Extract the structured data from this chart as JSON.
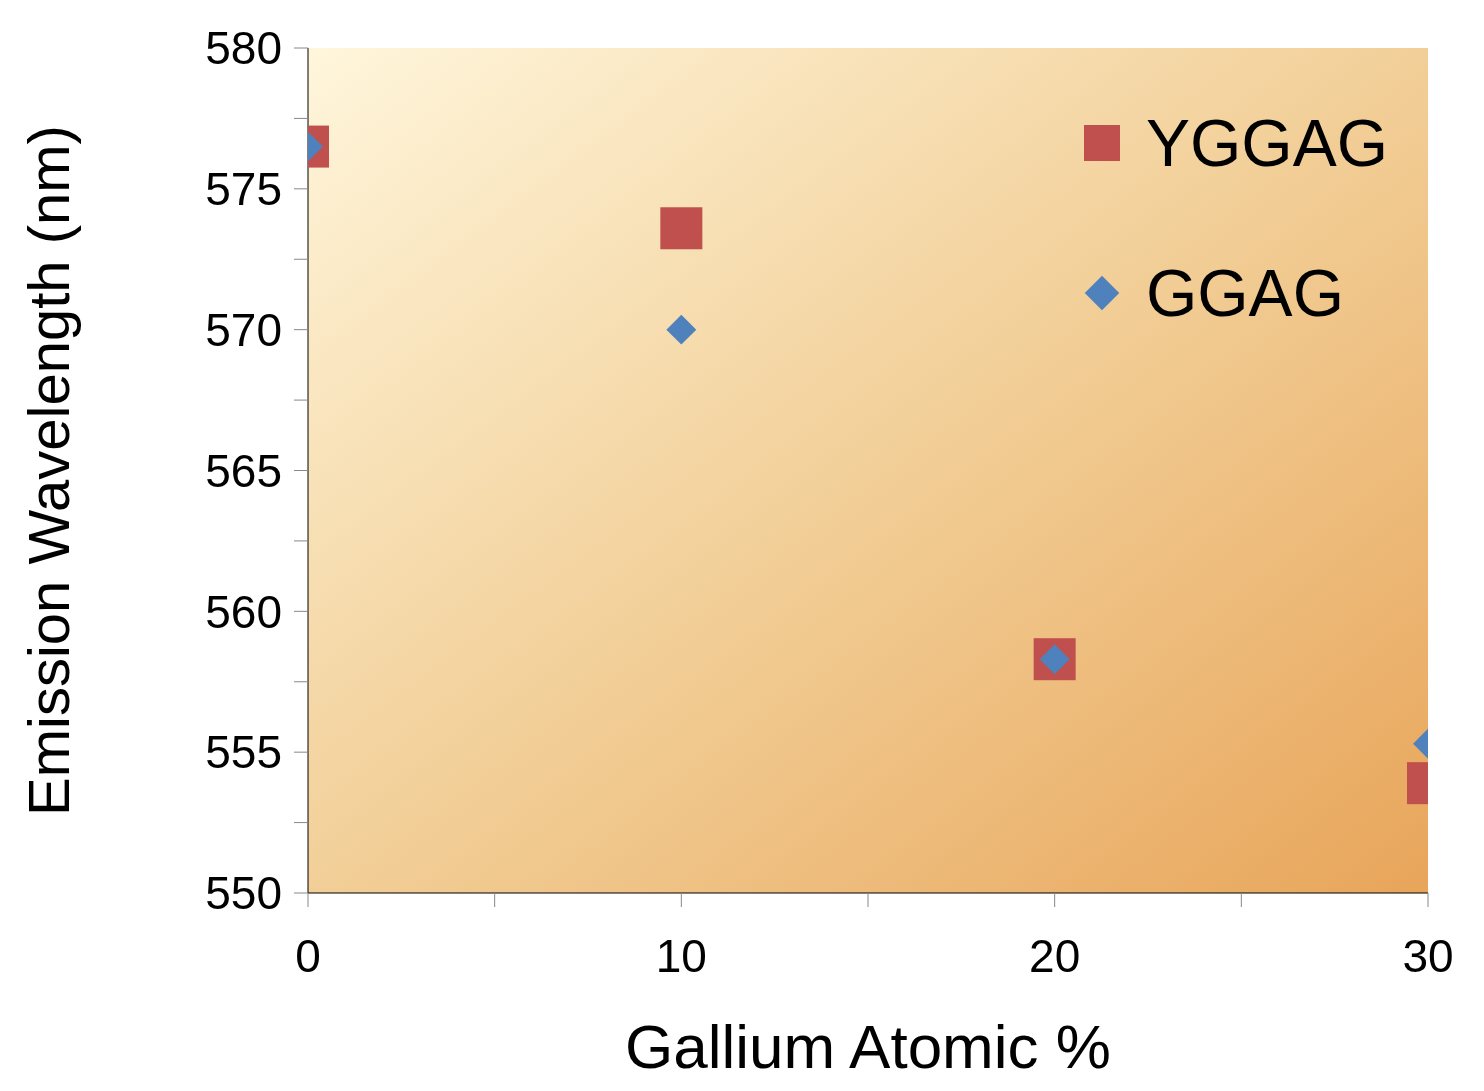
{
  "chart_data": {
    "type": "scatter",
    "xlabel": "Gallium Atomic %",
    "ylabel": "Emission Wavelength (nm)",
    "x": [
      0,
      10,
      20,
      30
    ],
    "series": [
      {
        "name": "YGGAG",
        "color": "#c0504d",
        "marker": "square",
        "values": [
          576.5,
          573.6,
          558.3,
          553.9
        ]
      },
      {
        "name": "GGAG",
        "color": "#4f81bd",
        "marker": "diamond",
        "values": [
          576.5,
          570,
          558.3,
          555.3
        ]
      }
    ],
    "xlim": [
      0,
      30
    ],
    "xticks": [
      0,
      {
        "value": 5,
        "label": null
      },
      10,
      {
        "value": 15,
        "label": null
      },
      20,
      {
        "value": 25,
        "label": null
      },
      30
    ],
    "ylim": [
      550,
      580
    ],
    "yticks": [
      550,
      {
        "value": 552.5,
        "label": null
      },
      555,
      {
        "value": 557.5,
        "label": null
      },
      560,
      {
        "value": 562.5,
        "label": null
      },
      565,
      {
        "value": 567.5,
        "label": null
      },
      570,
      {
        "value": 572.5,
        "label": null
      },
      575,
      {
        "value": 577.5,
        "label": null
      },
      580
    ],
    "grid": false,
    "legend": "top right"
  }
}
